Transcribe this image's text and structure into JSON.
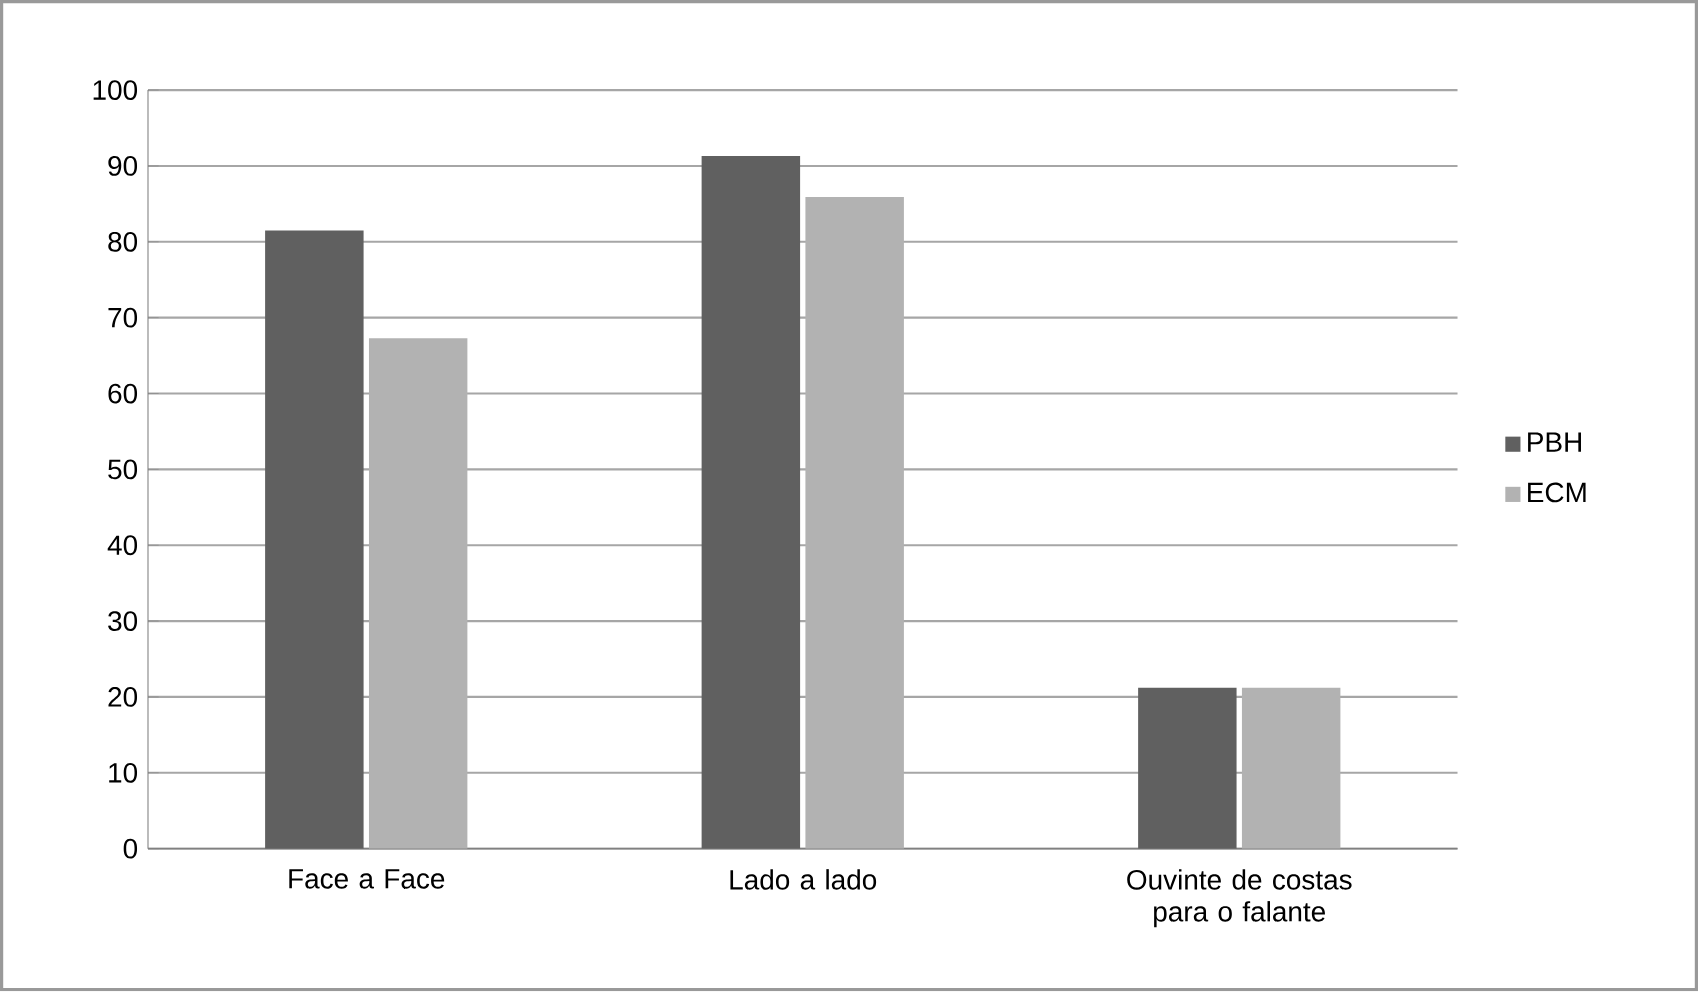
{
  "chart_data": {
    "type": "bar",
    "categories": [
      "Face a Face",
      "Lado a lado",
      "Ouvinte de costas para o falante"
    ],
    "series": [
      {
        "name": "PBH",
        "color": "#606060",
        "values": [
          81.5,
          91.3,
          21.2
        ]
      },
      {
        "name": "ECM",
        "color": "#b2b2b2",
        "values": [
          67.3,
          85.9,
          21.2
        ]
      }
    ],
    "ylim": [
      0,
      100
    ],
    "yticks": [
      0,
      10,
      20,
      30,
      40,
      50,
      60,
      70,
      80,
      90,
      100
    ],
    "grid": "y",
    "legend": "right"
  }
}
